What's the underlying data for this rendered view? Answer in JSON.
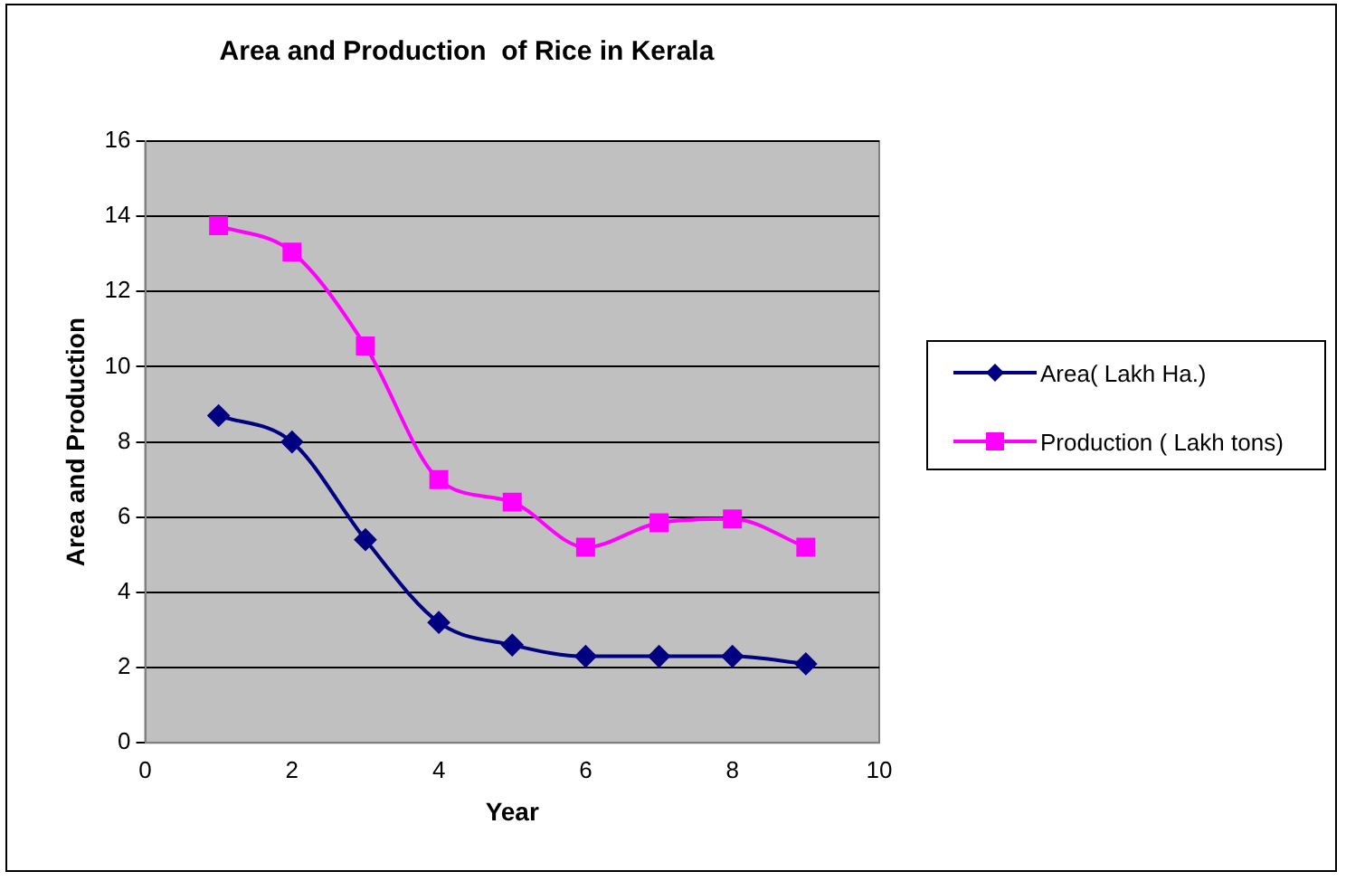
{
  "chart_data": {
    "type": "line",
    "title": "Area and Production  of Rice in Kerala",
    "xlabel": "Year",
    "ylabel": "Area and Production",
    "x": [
      1,
      2,
      3,
      4,
      5,
      6,
      7,
      8,
      9
    ],
    "series": [
      {
        "name": "Area( Lakh Ha.)",
        "color": "#000080",
        "marker": "diamond",
        "values": [
          8.7,
          8.0,
          5.4,
          3.2,
          2.6,
          2.3,
          2.3,
          2.3,
          2.1
        ]
      },
      {
        "name": "Production ( Lakh tons)",
        "color": "#ff00ff",
        "marker": "square",
        "values": [
          13.75,
          13.05,
          10.55,
          7.0,
          6.4,
          5.2,
          5.85,
          5.95,
          5.2
        ]
      }
    ],
    "xlim": [
      0,
      10
    ],
    "xticks": [
      0,
      2,
      4,
      6,
      8,
      10
    ],
    "ylim": [
      0,
      16
    ],
    "yticks": [
      0,
      2,
      4,
      6,
      8,
      10,
      12,
      14,
      16
    ],
    "grid": "y",
    "legend": "right"
  }
}
